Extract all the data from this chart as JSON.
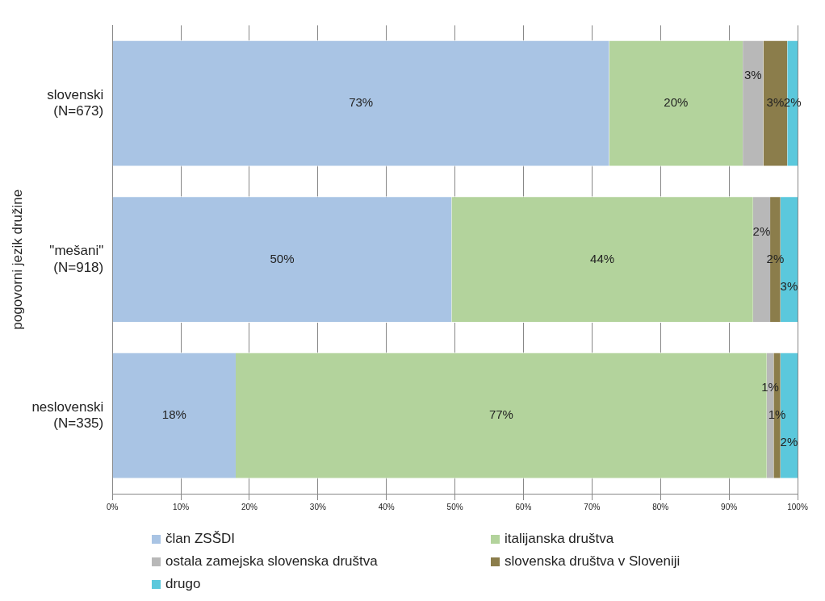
{
  "chart_data": {
    "type": "bar",
    "orientation": "horizontal",
    "stacked": true,
    "ylabel": "pogovorni jezik družine",
    "categories": [
      "slovenski\n(N=673)",
      "\"mešani\"\n(N=918)",
      "neslovenski\n(N=335)"
    ],
    "series": [
      {
        "name": "član ZSŠDI",
        "color": "#a9c4e4",
        "values": [
          72.5,
          49.5,
          18
        ],
        "value_labels": [
          "73%",
          "50%",
          "18%"
        ]
      },
      {
        "name": "italijanska društva",
        "color": "#b3d39c",
        "values": [
          19.5,
          44,
          77.5
        ],
        "value_labels": [
          "20%",
          "44%",
          "77%"
        ]
      },
      {
        "name": "ostala zamejska slovenska društva",
        "color": "#b8b8b8",
        "values": [
          3,
          2.5,
          1
        ],
        "value_labels": [
          "3%",
          "2%",
          "1%"
        ]
      },
      {
        "name": "slovenska društva v Sloveniji",
        "color": "#8b7d4b",
        "values": [
          3.5,
          1.5,
          1
        ],
        "value_labels": [
          "3%",
          "2%",
          "1%"
        ]
      },
      {
        "name": "drugo",
        "color": "#5bc8dc",
        "values": [
          1.5,
          2.5,
          2.5
        ],
        "value_labels": [
          "2%",
          "3%",
          "2%"
        ]
      }
    ],
    "xlim": [
      0,
      100
    ],
    "xticks": [
      {
        "value": 0,
        "label": "0%"
      },
      {
        "value": 10,
        "label": "10%"
      },
      {
        "value": 20,
        "label": "20%"
      },
      {
        "value": 30,
        "label": "30%"
      },
      {
        "value": 40,
        "label": "40%"
      },
      {
        "value": 50,
        "label": "50%"
      },
      {
        "value": 60,
        "label": "60%"
      },
      {
        "value": 70,
        "label": "70%"
      },
      {
        "value": 80,
        "label": "80%"
      },
      {
        "value": 90,
        "label": "90%"
      },
      {
        "value": 100,
        "label": "100%"
      }
    ],
    "grid": "x",
    "legend": "bottom"
  }
}
